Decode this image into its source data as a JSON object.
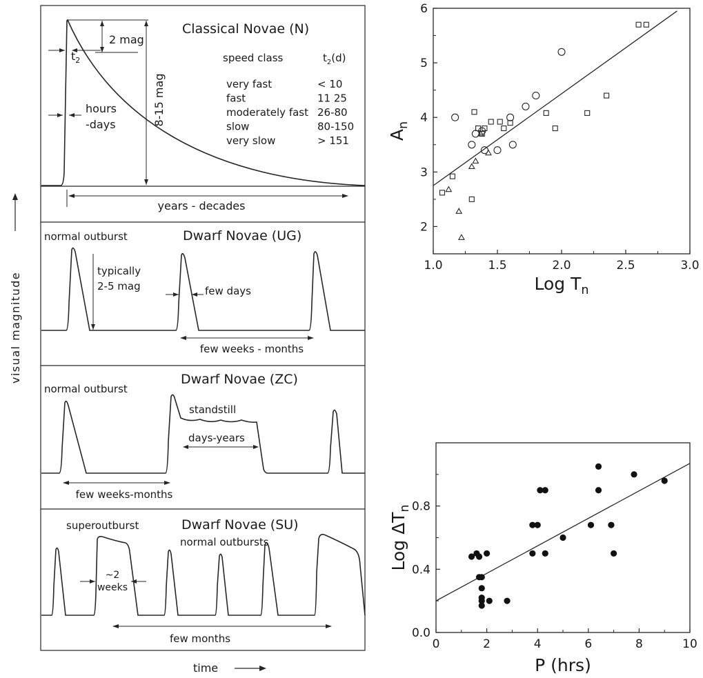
{
  "left_figure": {
    "y_axis_label": "visual   magnitude",
    "x_axis_label": "time",
    "panels": [
      {
        "title": "Classical Novae (N)",
        "labels": {
          "t2": "t",
          "t2_sub": "2",
          "two_mag": "2 mag",
          "amplitude": "8-15 mag",
          "rise": "hours",
          "rise2": "-days",
          "decline": "years - decades"
        },
        "speed_table": {
          "header_left": "speed class",
          "header_right": "t",
          "header_right_sub": "2",
          "header_right_unit": "(d)",
          "rows": [
            {
              "class": "very fast",
              "t2": "< 10"
            },
            {
              "class": "fast",
              "t2": "11  25"
            },
            {
              "class": "moderately fast",
              "t2": "26-80"
            },
            {
              "class": "slow",
              "t2": "80-150"
            },
            {
              "class": "very slow",
              "t2": "> 151"
            }
          ]
        }
      },
      {
        "title": "Dwarf  Novae (UG)",
        "labels": {
          "outburst": "normal outburst",
          "amp1": "typically",
          "amp2": "2-5 mag",
          "width": "few days",
          "recurrence": "few weeks  -  months"
        }
      },
      {
        "title": "Dwarf  Novae (ZC)",
        "labels": {
          "outburst": "normal outburst",
          "standstill": "standstill",
          "standstill_dur": "days-years",
          "recurrence": "few weeks-months"
        }
      },
      {
        "title": "Dwarf  Novae (SU)",
        "labels": {
          "superoutburst": "superoutburst",
          "normal": "normal outbursts",
          "width1": "~2",
          "width2": "weeks",
          "recurrence": "few months"
        }
      }
    ]
  },
  "chart_data": [
    {
      "type": "scatter",
      "xlabel": "Log T",
      "xlabel_sub": "n",
      "ylabel": "A",
      "ylabel_sub": "n",
      "xlim": [
        1.0,
        3.0
      ],
      "ylim": [
        1.5,
        6.0
      ],
      "xticks": [
        "1.0",
        "1.5",
        "2.0",
        "2.5",
        "3.0"
      ],
      "yticks": [
        "2",
        "3",
        "4",
        "5",
        "6"
      ],
      "xtick_values": [
        1.0,
        1.5,
        2.0,
        2.5,
        3.0
      ],
      "ytick_values": [
        2,
        3,
        4,
        5,
        6
      ],
      "fit_line": [
        [
          1.0,
          2.75
        ],
        [
          2.9,
          5.95
        ]
      ],
      "series": [
        {
          "marker": "square",
          "points": [
            [
              1.07,
              2.62
            ],
            [
              1.15,
              2.92
            ],
            [
              1.3,
              2.5
            ],
            [
              1.32,
              4.1
            ],
            [
              1.35,
              3.8
            ],
            [
              1.38,
              3.7
            ],
            [
              1.4,
              3.8
            ],
            [
              1.45,
              3.92
            ],
            [
              1.52,
              3.92
            ],
            [
              1.55,
              3.8
            ],
            [
              1.6,
              3.9
            ],
            [
              1.88,
              4.08
            ],
            [
              1.95,
              3.8
            ],
            [
              2.2,
              4.08
            ],
            [
              2.35,
              4.4
            ],
            [
              2.6,
              5.7
            ],
            [
              2.66,
              5.7
            ]
          ]
        },
        {
          "marker": "circle",
          "points": [
            [
              1.17,
              4.0
            ],
            [
              1.3,
              3.5
            ],
            [
              1.33,
              3.7
            ],
            [
              1.38,
              3.75
            ],
            [
              1.4,
              3.4
            ],
            [
              1.5,
              3.4
            ],
            [
              1.6,
              4.0
            ],
            [
              1.62,
              3.5
            ],
            [
              1.72,
              4.2
            ],
            [
              1.8,
              4.4
            ],
            [
              2.0,
              5.2
            ]
          ]
        },
        {
          "marker": "triangle",
          "points": [
            [
              1.12,
              2.68
            ],
            [
              1.2,
              2.28
            ],
            [
              1.22,
              1.8
            ],
            [
              1.3,
              3.1
            ],
            [
              1.33,
              3.2
            ],
            [
              1.37,
              3.7
            ],
            [
              1.43,
              3.35
            ]
          ]
        }
      ]
    },
    {
      "type": "scatter",
      "xlabel": "P (hrs)",
      "ylabel": "Log ΔT",
      "ylabel_sub": "n",
      "xlim": [
        0,
        10
      ],
      "ylim": [
        0.0,
        1.2
      ],
      "xticks": [
        "0",
        "2",
        "4",
        "6",
        "8",
        "10"
      ],
      "yticks": [
        "0.0",
        "0.4",
        "0.8"
      ],
      "xtick_values": [
        0,
        2,
        4,
        6,
        8,
        10
      ],
      "ytick_values": [
        0.0,
        0.4,
        0.8
      ],
      "fit_line": [
        [
          0,
          0.2
        ],
        [
          10,
          1.07
        ]
      ],
      "series": [
        {
          "marker": "filled-circle",
          "points": [
            [
              1.4,
              0.48
            ],
            [
              1.6,
              0.5
            ],
            [
              1.7,
              0.48
            ],
            [
              1.8,
              0.35
            ],
            [
              1.7,
              0.35
            ],
            [
              1.8,
              0.28
            ],
            [
              1.8,
              0.22
            ],
            [
              1.8,
              0.17
            ],
            [
              1.8,
              0.2
            ],
            [
              2.0,
              0.5
            ],
            [
              2.1,
              0.2
            ],
            [
              2.8,
              0.2
            ],
            [
              3.8,
              0.68
            ],
            [
              3.8,
              0.5
            ],
            [
              4.0,
              0.68
            ],
            [
              4.1,
              0.9
            ],
            [
              4.3,
              0.9
            ],
            [
              4.3,
              0.5
            ],
            [
              5.0,
              0.6
            ],
            [
              6.1,
              0.68
            ],
            [
              6.4,
              1.05
            ],
            [
              6.4,
              0.9
            ],
            [
              6.9,
              0.68
            ],
            [
              7.0,
              0.5
            ],
            [
              7.8,
              1.0
            ],
            [
              9.0,
              0.96
            ]
          ]
        }
      ]
    }
  ]
}
